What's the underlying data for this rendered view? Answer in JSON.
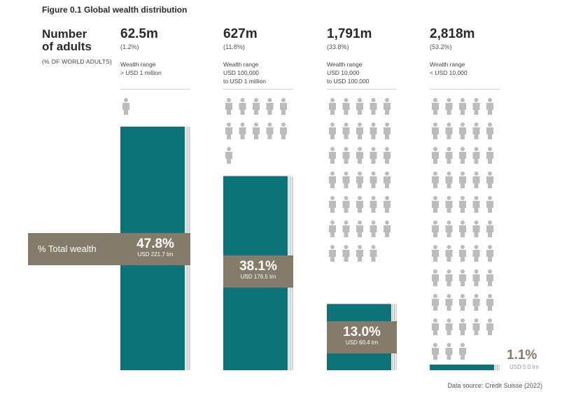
{
  "figure_title": "Figure 0.1 Global wealth distribution",
  "left_label": {
    "title_line1": "Number",
    "title_line2": "of adults",
    "subtitle": "(% OF WORLD ADULTS)"
  },
  "total_wealth_label": "% Total wealth",
  "source": "Data source: Credit Suisse (2022)",
  "colors": {
    "bar": "#0d7379",
    "box": "#847b6b",
    "person": "#bcbcbc"
  },
  "chart_data": {
    "type": "bar",
    "title": "Figure 0.1 Global wealth distribution",
    "categories": [
      "> USD 1 million",
      "USD 100,000 to USD 1 million",
      "USD 10,000 to USD 100,000",
      "< USD 10,000"
    ],
    "series": [
      {
        "name": "Number of adults",
        "values": [
          62.5,
          627,
          1791,
          2818
        ],
        "labels": [
          "62.5m",
          "627m",
          "1,791m",
          "2,818m"
        ],
        "share_labels": [
          "(1.2%)",
          "(11.8%)",
          "(33.8%)",
          "(53.2%)"
        ],
        "share_values": [
          1.2,
          11.8,
          33.8,
          53.2
        ]
      },
      {
        "name": "% Total wealth",
        "values": [
          47.8,
          38.1,
          13.0,
          1.1
        ],
        "labels": [
          "47.8%",
          "38.1%",
          "13.0%",
          "1.1%"
        ],
        "amounts": [
          "USD 221.7 trn",
          "USD 176.5 trn",
          "USD 60.4 trn",
          "USD 5.0 trn"
        ],
        "amount_values": [
          221.7,
          176.5,
          60.4,
          5.0
        ]
      }
    ],
    "wealth_range_heading": "Wealth range",
    "range_lines": [
      [
        "> USD 1 million"
      ],
      [
        "USD 100,000",
        "to USD 1 million"
      ],
      [
        "USD 10,000",
        "to USD 100,000"
      ],
      [
        "< USD 10,000"
      ]
    ],
    "people_icons": [
      1,
      11,
      34,
      53
    ],
    "ylim": [
      0,
      50
    ]
  }
}
